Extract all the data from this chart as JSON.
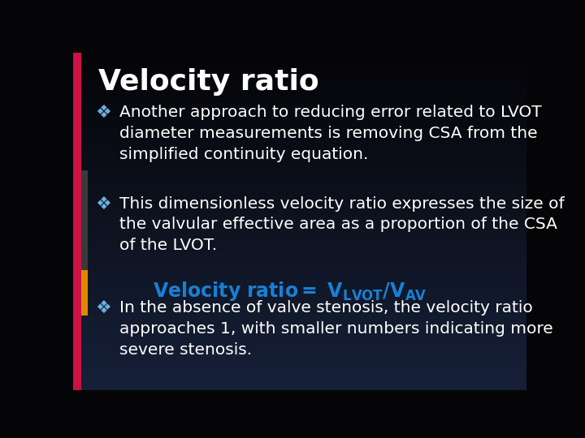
{
  "title": "Velocity ratio",
  "title_color": "#ffffff",
  "title_fontsize": 26,
  "title_fontweight": "bold",
  "bg_color_top": "#050508",
  "bg_color_bottom": "#162038",
  "bullet1": "Another approach to reducing error related to LVOT\ndiameter measurements is removing CSA from the\nsimplified continuity equation.",
  "bullet2": "This dimensionless velocity ratio expresses the size of\nthe valvular effective area as a proportion of the CSA\nof the LVOT.",
  "bullet3": "In the absence of valve stenosis, the velocity ratio\napproaches 1, with smaller numbers indicating more\nsevere stenosis.",
  "formula_color": "#1a7fd4",
  "formula_fontsize": 17,
  "bullet_color": "#ffffff",
  "bullet_fontsize": 14.5,
  "bullet_symbol": "❖",
  "bullet_symbol_color": "#6ab0e0",
  "left_bar1_color": "#cc1144",
  "left_bar2_color": "#555555",
  "left_bar3_color": "#dd8800"
}
